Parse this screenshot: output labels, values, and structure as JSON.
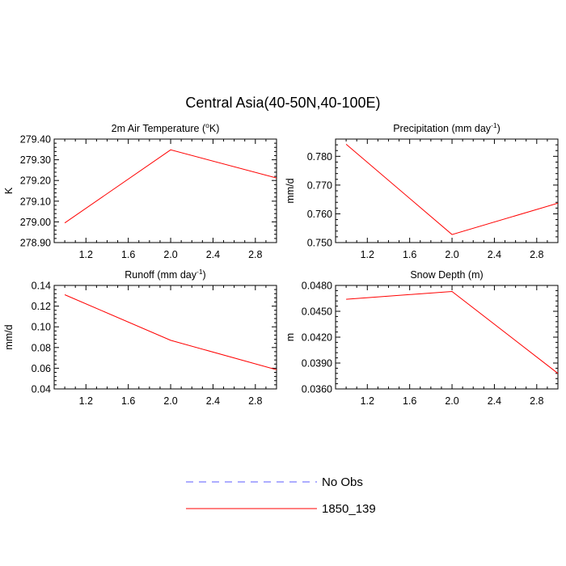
{
  "title": "Central Asia(40-50N,40-100E)",
  "legend": {
    "entries": [
      {
        "label": "No Obs",
        "color": "#5b5bff",
        "style": "dashed"
      },
      {
        "label": "1850_139",
        "color": "#ff0000",
        "style": "solid"
      }
    ]
  },
  "chart_data": [
    {
      "type": "line",
      "title": "2m Air Temperature (",
      "title_sup": "o",
      "title_tail": "K)",
      "ylabel": "K",
      "xlim": [
        0.9,
        3.0
      ],
      "ylim": [
        278.9,
        279.4
      ],
      "x_ticks_major": [
        1.2,
        1.6,
        2.0,
        2.4,
        2.8
      ],
      "x_tick_labels": [
        "1.2",
        "1.6",
        "2.0",
        "2.4",
        "2.8"
      ],
      "y_ticks_major": [
        278.9,
        279.0,
        279.1,
        279.2,
        279.3,
        279.4
      ],
      "y_tick_labels": [
        "278.90",
        "279.00",
        "279.10",
        "279.20",
        "279.30",
        "279.40"
      ],
      "series": [
        {
          "name": "1850_139",
          "color": "#ff0000",
          "x": [
            1.0,
            2.0,
            3.0
          ],
          "y": [
            278.995,
            279.348,
            279.212
          ]
        }
      ]
    },
    {
      "type": "line",
      "title": "Precipitation (mm day",
      "title_sup": "-1",
      "title_tail": ")",
      "ylabel": "mm/d",
      "xlim": [
        0.9,
        3.0
      ],
      "ylim": [
        0.75,
        0.786
      ],
      "x_ticks_major": [
        1.2,
        1.6,
        2.0,
        2.4,
        2.8
      ],
      "x_tick_labels": [
        "1.2",
        "1.6",
        "2.0",
        "2.4",
        "2.8"
      ],
      "y_ticks_major": [
        0.75,
        0.76,
        0.77,
        0.78
      ],
      "y_tick_labels": [
        "0.750",
        "0.760",
        "0.770",
        "0.780"
      ],
      "series": [
        {
          "name": "1850_139",
          "color": "#ff0000",
          "x": [
            1.0,
            2.0,
            3.0
          ],
          "y": [
            0.7842,
            0.7528,
            0.7637
          ]
        }
      ]
    },
    {
      "type": "line",
      "title": "Runoff (mm day",
      "title_sup": "-1",
      "title_tail": ")",
      "ylabel": "mm/d",
      "xlim": [
        0.9,
        3.0
      ],
      "ylim": [
        0.04,
        0.14
      ],
      "x_ticks_major": [
        1.2,
        1.6,
        2.0,
        2.4,
        2.8
      ],
      "x_tick_labels": [
        "1.2",
        "1.6",
        "2.0",
        "2.4",
        "2.8"
      ],
      "y_ticks_major": [
        0.04,
        0.06,
        0.08,
        0.1,
        0.12,
        0.14
      ],
      "y_tick_labels": [
        "0.04",
        "0.06",
        "0.08",
        "0.10",
        "0.12",
        "0.14"
      ],
      "series": [
        {
          "name": "1850_139",
          "color": "#ff0000",
          "x": [
            1.0,
            2.0,
            3.0
          ],
          "y": [
            0.131,
            0.087,
            0.0585
          ]
        }
      ]
    },
    {
      "type": "line",
      "title": "Snow Depth (m)",
      "title_sup": "",
      "title_tail": "",
      "ylabel": "m",
      "xlim": [
        0.9,
        3.0
      ],
      "ylim": [
        0.036,
        0.048
      ],
      "x_ticks_major": [
        1.2,
        1.6,
        2.0,
        2.4,
        2.8
      ],
      "x_tick_labels": [
        "1.2",
        "1.6",
        "2.0",
        "2.4",
        "2.8"
      ],
      "y_ticks_major": [
        0.036,
        0.039,
        0.042,
        0.045,
        0.048
      ],
      "y_tick_labels": [
        "0.0360",
        "0.0390",
        "0.0420",
        "0.0450",
        "0.0480"
      ],
      "series": [
        {
          "name": "1850_139",
          "color": "#ff0000",
          "x": [
            1.0,
            2.0,
            3.0
          ],
          "y": [
            0.0464,
            0.0473,
            0.0378
          ]
        }
      ]
    }
  ]
}
